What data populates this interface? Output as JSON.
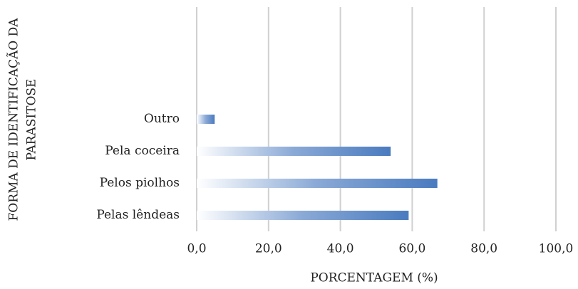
{
  "chart_data": {
    "type": "bar",
    "orientation": "horizontal",
    "xlabel": "PORCENTAGEM (%)",
    "ylabel": [
      "FORMA DE IDENTIFICAÇÃO DA",
      "PARASITOSE"
    ],
    "categories": [
      "Pelas lêndeas",
      "Pelos piolhos",
      "Pela coceira",
      "Outro",
      null,
      null,
      null
    ],
    "values": [
      59,
      67,
      54,
      5,
      null,
      null,
      null
    ],
    "color": "#4a7bbf",
    "xlim": [
      0,
      100
    ],
    "xticks": [
      {
        "value": 0,
        "label": "0,0"
      },
      {
        "value": 20,
        "label": "20,0"
      },
      {
        "value": 40,
        "label": "40,0"
      },
      {
        "value": 60,
        "label": "60,0"
      },
      {
        "value": 80,
        "label": "80,0"
      },
      {
        "value": 100,
        "label": "100,0"
      }
    ],
    "grid": true
  }
}
